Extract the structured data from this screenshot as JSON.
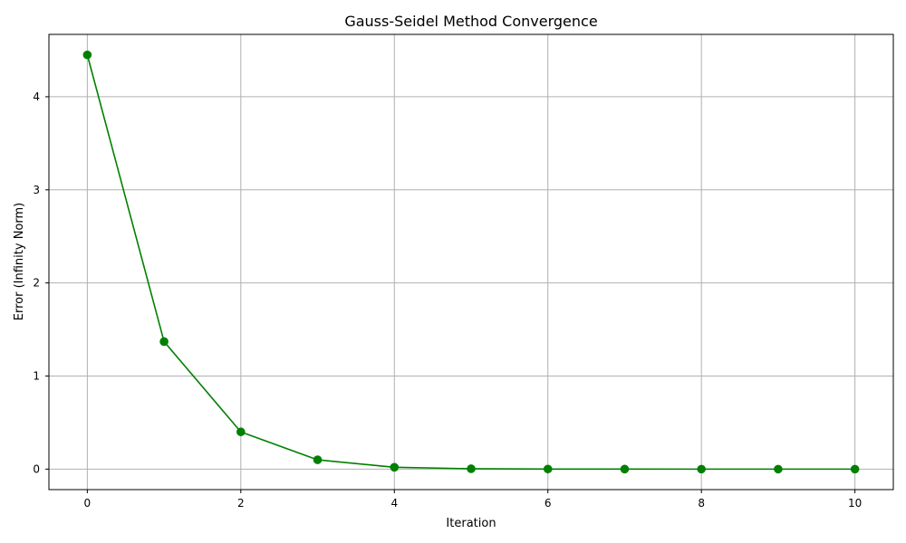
{
  "chart_data": {
    "type": "line",
    "title": "Gauss-Seidel Method Convergence",
    "xlabel": "Iteration",
    "ylabel": "Error (Infinity Norm)",
    "x": [
      0,
      1,
      2,
      3,
      4,
      5,
      6,
      7,
      8,
      9,
      10
    ],
    "series": [
      {
        "values": [
          4.45,
          1.37,
          0.4,
          0.1,
          0.02,
          0.004,
          0.001,
          0.0002,
          5e-05,
          1e-05,
          2e-06
        ],
        "color": "#008000",
        "marker": "circle"
      }
    ],
    "xlim": [
      -0.5,
      10.5
    ],
    "ylim": [
      -0.22,
      4.67
    ],
    "xticks": [
      0,
      2,
      4,
      6,
      8,
      10
    ],
    "yticks": [
      0,
      1,
      2,
      3,
      4
    ],
    "grid": true,
    "gridColor": "#b0b0b0",
    "legend": "none"
  }
}
